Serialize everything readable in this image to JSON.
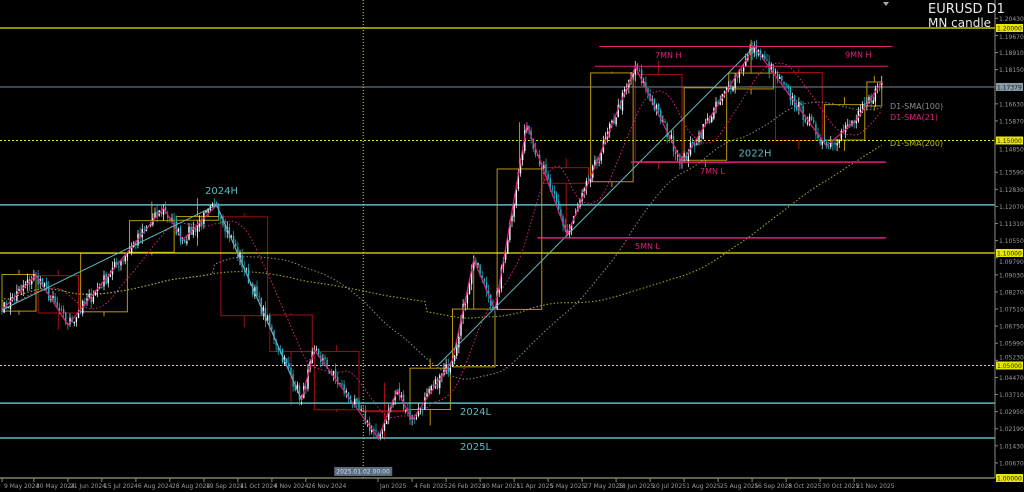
{
  "header": {
    "symbol_timeframe": "EURUSD D1",
    "indicator": "MN candle"
  },
  "crosshair_label": "2025.01.02 00:00",
  "colors": {
    "background": "#000000",
    "bull_candle": "#ffffff",
    "bear_candle": "#1fb8c8",
    "level_yellow": "#e6e600",
    "zigzag": "#e0207a",
    "trend_teal": "#5fb8c0",
    "mn_bull_box": "#b8960a",
    "mn_bear_box": "#a01010",
    "sma21": "#e0207a",
    "sma100": "#8a8a8a",
    "sma200": "#b0b020"
  },
  "chart_data": {
    "type": "candlestick",
    "ylim": [
      1.0,
      1.21244
    ],
    "y_ticks": [
      "1.20430",
      "1.19670",
      "1.18910",
      "1.18150",
      "1.16630",
      "1.15870",
      "1.14850",
      "1.13590",
      "1.12830",
      "1.12070",
      "1.11310",
      "1.10550",
      "1.09790",
      "1.09030",
      "1.08270",
      "1.07510",
      "1.06750",
      "1.05990",
      "1.05230",
      "1.04470",
      "1.03710",
      "1.02950",
      "1.02190",
      "1.01430",
      "1.00670"
    ],
    "y_ticks_values": [
      1.2043,
      1.1967,
      1.1891,
      1.1815,
      1.1663,
      1.1587,
      1.1485,
      1.1359,
      1.1283,
      1.1207,
      1.1131,
      1.1055,
      1.0979,
      1.0903,
      1.0827,
      1.0751,
      1.0675,
      1.0599,
      1.0523,
      1.0447,
      1.0371,
      1.0295,
      1.0219,
      1.0143,
      1.0067
    ],
    "price_tags": [
      {
        "text": "1.20000",
        "value": 1.2,
        "style": "yellow"
      },
      {
        "text": "1.17379",
        "value": 1.17379,
        "style": "gray"
      },
      {
        "text": "1.15000",
        "value": 1.15,
        "style": "yellow"
      },
      {
        "text": "1.10000",
        "value": 1.1,
        "style": "yellow"
      },
      {
        "text": "1.05000",
        "value": 1.05,
        "style": "yellow"
      },
      {
        "text": "1.00000",
        "value": 1.0,
        "style": "yellow"
      }
    ],
    "x_ticks": [
      {
        "date": "2024-05-09",
        "label": "9 May 2024"
      },
      {
        "date": "2024-05-30",
        "label": "30 May 2024"
      },
      {
        "date": "2024-06-21",
        "label": "21 Jun 2024"
      },
      {
        "date": "2024-07-15",
        "label": "15 Jul 2024"
      },
      {
        "date": "2024-08-06",
        "label": "6 Aug 2024"
      },
      {
        "date": "2024-08-28",
        "label": "28 Aug 2024"
      },
      {
        "date": "2024-09-19",
        "label": "19 Sep 2024"
      },
      {
        "date": "2024-10-11",
        "label": "11 Oct 2024"
      },
      {
        "date": "2024-11-04",
        "label": "4 Nov 2024"
      },
      {
        "date": "2024-11-26",
        "label": "26 Nov 2024"
      },
      {
        "date": "2025-01-17",
        "label": "Jan 2025"
      },
      {
        "date": "2025-02-04",
        "label": "4 Feb 2025"
      },
      {
        "date": "2025-02-26",
        "label": "26 Feb 2025"
      },
      {
        "date": "2025-03-20",
        "label": "20 Mar 2025"
      },
      {
        "date": "2025-04-11",
        "label": "11 Apr 2025"
      },
      {
        "date": "2025-05-05",
        "label": "5 May 2025"
      },
      {
        "date": "2025-05-27",
        "label": "27 May 2025"
      },
      {
        "date": "2025-06-18",
        "label": "18 Jun 2025"
      },
      {
        "date": "2025-07-10",
        "label": "10 Jul 2025"
      },
      {
        "date": "2025-08-01",
        "label": "1 Aug 2025"
      },
      {
        "date": "2025-08-25",
        "label": "25 Aug 2025"
      },
      {
        "date": "2025-09-16",
        "label": "16 Sep 2025"
      },
      {
        "date": "2025-10-08",
        "label": "8 Oct 2025"
      },
      {
        "date": "2025-10-30",
        "label": "30 Oct 2025"
      },
      {
        "date": "2025-11-21",
        "label": "21 Nov 2025"
      }
    ],
    "crosshair_date": "2025-01-02",
    "price_pivots": [
      {
        "date": "2024-05-09",
        "price": 1.0747
      },
      {
        "date": "2024-05-31",
        "price": 1.0902
      },
      {
        "date": "2024-06-21",
        "price": 1.068
      },
      {
        "date": "2024-08-23",
        "price": 1.12
      },
      {
        "date": "2024-09-05",
        "price": 1.1058
      },
      {
        "date": "2024-09-27",
        "price": 1.1213
      },
      {
        "date": "2024-11-22",
        "price": 1.0347
      },
      {
        "date": "2024-12-02",
        "price": 1.057
      },
      {
        "date": "2025-01-13",
        "price": 1.0178
      },
      {
        "date": "2025-01-24",
        "price": 1.039
      },
      {
        "date": "2025-02-04",
        "price": 1.0258
      },
      {
        "date": "2025-03-03",
        "price": 1.0524
      },
      {
        "date": "2025-03-17",
        "price": 1.097
      },
      {
        "date": "2025-03-31",
        "price": 1.0747
      },
      {
        "date": "2025-04-21",
        "price": 1.157
      },
      {
        "date": "2025-05-16",
        "price": 1.108
      },
      {
        "date": "2025-07-01",
        "price": 1.1827
      },
      {
        "date": "2025-07-31",
        "price": 1.1404
      },
      {
        "date": "2025-09-17",
        "price": 1.1916
      },
      {
        "date": "2025-11-04",
        "price": 1.1476
      },
      {
        "date": "2025-11-24",
        "price": 1.159
      },
      {
        "date": "2025-12-10",
        "price": 1.176
      }
    ],
    "levels": [
      {
        "price": 1.2,
        "style": "yellow-solid"
      },
      {
        "price": 1.1,
        "style": "yellow-solid"
      },
      {
        "price": 1.0,
        "style": "yellow-solid"
      },
      {
        "price": 1.15,
        "style": "yellow-dotted"
      },
      {
        "price": 1.05,
        "style": "yellow-dotted"
      },
      {
        "price": 1.17379,
        "style": "gray-solid"
      },
      {
        "price": 1.1214,
        "style": "teal",
        "label": "2024H"
      },
      {
        "price": 1.0333,
        "style": "teal",
        "label": "2024L"
      },
      {
        "price": 1.0178,
        "style": "teal",
        "label": "2025L"
      }
    ],
    "segment_levels": [
      {
        "price": 1.1918,
        "from": "2025-06-06",
        "to": "2025-12-17",
        "label": "9MN H"
      },
      {
        "price": 1.183,
        "from": "2025-06-04",
        "to": "2025-12-15",
        "label": "7MN H"
      },
      {
        "price": 1.1404,
        "from": "2025-06-27",
        "to": "2025-12-12",
        "label": "7MN L"
      },
      {
        "price": 1.1067,
        "from": "2025-04-28",
        "to": "2025-12-12",
        "label": "5MN L"
      }
    ],
    "extra_labels": [
      {
        "text": "2022H",
        "price": 1.1465,
        "date": "2025-09-19"
      }
    ],
    "trendlines": [
      {
        "from": {
          "date": "2024-05-09",
          "price": 1.0747
        },
        "to": {
          "date": "2024-09-27",
          "price": 1.1213
        }
      },
      {
        "from": {
          "date": "2024-09-27",
          "price": 1.1213
        },
        "to": {
          "date": "2024-11-22",
          "price": 1.0347
        }
      },
      {
        "from": {
          "date": "2025-02-20",
          "price": 1.05
        },
        "to": {
          "date": "2025-09-17",
          "price": 1.1916
        }
      }
    ],
    "indicators": [
      {
        "name": "D1-SMA(100)",
        "period": 100,
        "color": "#8a8a8a"
      },
      {
        "name": "D1-SMA(21)",
        "period": 21,
        "color": "#e0207a"
      },
      {
        "name": "D1-SMA(200)",
        "period": 200,
        "color": "#b0b020"
      }
    ]
  }
}
